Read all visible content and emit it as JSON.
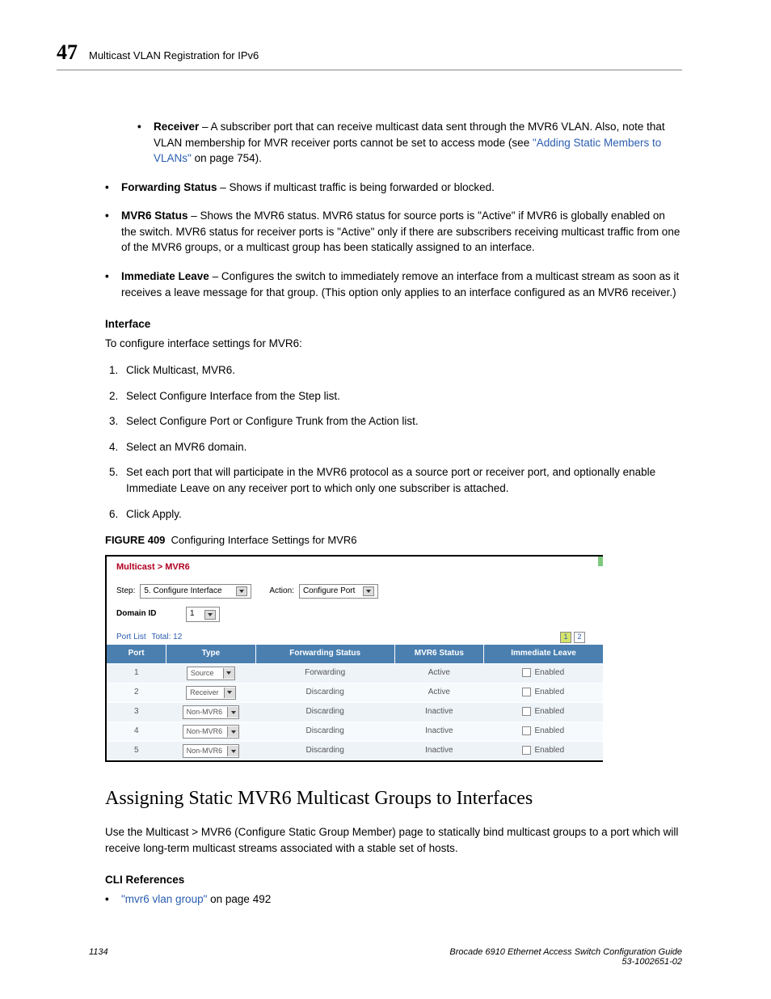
{
  "header": {
    "chapter_number": "47",
    "title": "Multicast VLAN Registration for IPv6"
  },
  "bullets": {
    "receiver_label": "Receiver",
    "receiver_text1": " – A subscriber port that can receive multicast data sent through the MVR6 VLAN. Also, note that VLAN membership for MVR receiver ports cannot be set to access mode (see ",
    "receiver_link": "\"Adding Static Members to VLANs\"",
    "receiver_text2": " on page 754).",
    "fwd_label": "Forwarding Status",
    "fwd_text": " – Shows if multicast traffic is being forwarded or blocked.",
    "mvr6_label": "MVR6 Status",
    "mvr6_text": " – Shows the MVR6 status. MVR6 status for source ports is \"Active\" if MVR6 is globally enabled on the switch. MVR6 status for receiver ports is \"Active\" only if there are subscribers receiving multicast traffic from one of the MVR6 groups, or a multicast group has been statically assigned to an interface.",
    "imm_label": "Immediate Leave",
    "imm_text": " – Configures the switch to immediately remove an interface from a multicast stream as soon as it receives a leave message for that group. (This option only applies to an interface configured as an MVR6 receiver.)"
  },
  "interface": {
    "heading": "Interface",
    "intro": "To configure interface settings for MVR6:",
    "steps": [
      "Click Multicast, MVR6.",
      "Select Configure Interface from the Step list.",
      "Select Configure Port or Configure Trunk from the Action list.",
      "Select an MVR6 domain.",
      "Set each port that will participate in the MVR6 protocol as a source port or receiver port, and optionally enable Immediate Leave on any receiver port to which only one subscriber is attached.",
      "Click Apply."
    ]
  },
  "figure": {
    "label": "FIGURE 409",
    "caption": "Configuring Interface Settings for MVR6"
  },
  "screenshot": {
    "breadcrumb": "Multicast > MVR6",
    "step_label": "Step:",
    "step_value": "5. Configure Interface",
    "action_label": "Action:",
    "action_value": "Configure Port",
    "domain_label": "Domain ID",
    "domain_value": "1",
    "portlist_label": "Port List",
    "portlist_total_label": "Total:",
    "portlist_total": "12",
    "pager": [
      "1",
      "2"
    ],
    "pager_active": 0,
    "columns": [
      "Port",
      "Type",
      "Forwarding Status",
      "MVR6 Status",
      "Immediate Leave"
    ],
    "rows": [
      {
        "port": "1",
        "type": "Source",
        "fwd": "Forwarding",
        "status": "Active",
        "imm": "Enabled"
      },
      {
        "port": "2",
        "type": "Receiver",
        "fwd": "Discarding",
        "status": "Active",
        "imm": "Enabled"
      },
      {
        "port": "3",
        "type": "Non-MVR6",
        "fwd": "Discarding",
        "status": "Inactive",
        "imm": "Enabled"
      },
      {
        "port": "4",
        "type": "Non-MVR6",
        "fwd": "Discarding",
        "status": "Inactive",
        "imm": "Enabled"
      },
      {
        "port": "5",
        "type": "Non-MVR6",
        "fwd": "Discarding",
        "status": "Inactive",
        "imm": "Enabled"
      }
    ],
    "colors": {
      "breadcrumb": "#b00020",
      "header_bg": "#4a7fb0",
      "header_fg": "#ffffff",
      "row_bg_a": "#eef3f8",
      "row_bg_b": "#f7fafd",
      "link": "#2a5db0",
      "pager_active": "#d6e36a",
      "border": "#000000"
    }
  },
  "section2": {
    "heading": "Assigning Static MVR6 Multicast Groups to Interfaces",
    "para": "Use the Multicast > MVR6 (Configure Static Group Member) page to statically bind multicast groups to a port which will receive long-term multicast streams associated with a stable set of hosts.",
    "cli_heading": "CLI References",
    "cli_link": "\"mvr6 vlan group\"",
    "cli_after": " on page 492"
  },
  "footer": {
    "page": "1134",
    "book": "Brocade 6910 Ethernet Access Switch Configuration Guide",
    "docnum": "53-1002651-02"
  }
}
